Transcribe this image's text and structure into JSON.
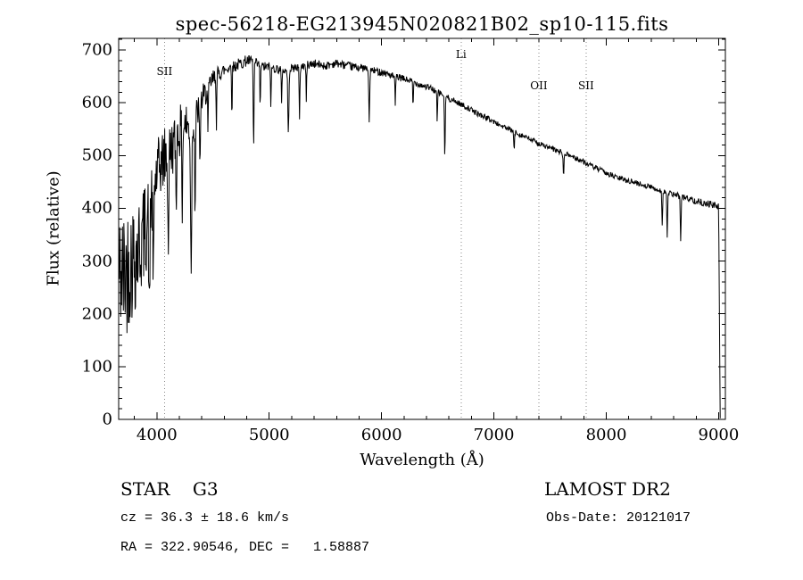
{
  "chart_data": {
    "type": "line",
    "title": "spec-56218-EG213945N020821B02_sp10-115.fits",
    "xlabel": "Wavelength (Å)",
    "ylabel": "Flux (relative)",
    "xlim": [
      3660,
      9060
    ],
    "ylim": [
      0,
      722
    ],
    "xticks": [
      4000,
      5000,
      6000,
      7000,
      8000,
      9000
    ],
    "yticks": [
      0,
      100,
      200,
      300,
      400,
      500,
      600,
      700
    ],
    "x_minor_step": 200,
    "y_minor_step": 20,
    "grid": false,
    "legend": "none",
    "line_color": "#000000",
    "marker_line_color": "#8a8a8a",
    "marker_lines": [
      {
        "label": "SII",
        "wavelength": 4068,
        "label_flux": 660
      },
      {
        "label": "Li",
        "wavelength": 6708,
        "label_flux": 692
      },
      {
        "label": "OII",
        "wavelength": 7400,
        "label_flux": 632
      },
      {
        "label": "SII",
        "wavelength": 7820,
        "label_flux": 632
      }
    ],
    "continuum": [
      [
        3660,
        280
      ],
      [
        3700,
        270
      ],
      [
        3750,
        295
      ],
      [
        3800,
        310
      ],
      [
        3850,
        330
      ],
      [
        3900,
        360
      ],
      [
        3950,
        420
      ],
      [
        4000,
        465
      ],
      [
        4050,
        490
      ],
      [
        4100,
        505
      ],
      [
        4150,
        520
      ],
      [
        4200,
        545
      ],
      [
        4250,
        560
      ],
      [
        4300,
        550
      ],
      [
        4350,
        575
      ],
      [
        4400,
        605
      ],
      [
        4450,
        625
      ],
      [
        4500,
        645
      ],
      [
        4550,
        655
      ],
      [
        4600,
        662
      ],
      [
        4650,
        668
      ],
      [
        4700,
        670
      ],
      [
        4750,
        675
      ],
      [
        4800,
        680
      ],
      [
        4850,
        678
      ],
      [
        4900,
        672
      ],
      [
        4950,
        668
      ],
      [
        5000,
        668
      ],
      [
        5050,
        665
      ],
      [
        5100,
        663
      ],
      [
        5150,
        660
      ],
      [
        5200,
        665
      ],
      [
        5250,
        668
      ],
      [
        5300,
        670
      ],
      [
        5350,
        672
      ],
      [
        5400,
        674
      ],
      [
        5450,
        672
      ],
      [
        5500,
        670
      ],
      [
        5550,
        673
      ],
      [
        5600,
        675
      ],
      [
        5650,
        672
      ],
      [
        5700,
        670
      ],
      [
        5750,
        668
      ],
      [
        5800,
        667
      ],
      [
        5850,
        665
      ],
      [
        5900,
        662
      ],
      [
        5950,
        660
      ],
      [
        6000,
        658
      ],
      [
        6050,
        655
      ],
      [
        6100,
        650
      ],
      [
        6150,
        648
      ],
      [
        6200,
        645
      ],
      [
        6250,
        642
      ],
      [
        6300,
        638
      ],
      [
        6350,
        634
      ],
      [
        6400,
        630
      ],
      [
        6450,
        626
      ],
      [
        6500,
        620
      ],
      [
        6550,
        615
      ],
      [
        6600,
        608
      ],
      [
        6650,
        603
      ],
      [
        6700,
        598
      ],
      [
        6750,
        592
      ],
      [
        6800,
        586
      ],
      [
        6850,
        580
      ],
      [
        6900,
        575
      ],
      [
        6950,
        570
      ],
      [
        7000,
        564
      ],
      [
        7050,
        558
      ],
      [
        7100,
        553
      ],
      [
        7150,
        548
      ],
      [
        7200,
        543
      ],
      [
        7250,
        538
      ],
      [
        7300,
        533
      ],
      [
        7350,
        528
      ],
      [
        7400,
        523
      ],
      [
        7450,
        518
      ],
      [
        7500,
        514
      ],
      [
        7550,
        510
      ],
      [
        7600,
        506
      ],
      [
        7650,
        502
      ],
      [
        7700,
        498
      ],
      [
        7750,
        493
      ],
      [
        7800,
        488
      ],
      [
        7850,
        482
      ],
      [
        7900,
        477
      ],
      [
        7950,
        472
      ],
      [
        8000,
        467
      ],
      [
        8050,
        462
      ],
      [
        8100,
        458
      ],
      [
        8150,
        455
      ],
      [
        8200,
        452
      ],
      [
        8250,
        449
      ],
      [
        8300,
        446
      ],
      [
        8350,
        443
      ],
      [
        8400,
        440
      ],
      [
        8450,
        436
      ],
      [
        8500,
        433
      ],
      [
        8550,
        429
      ],
      [
        8600,
        426
      ],
      [
        8650,
        423
      ],
      [
        8700,
        420
      ],
      [
        8750,
        417
      ],
      [
        8800,
        414
      ],
      [
        8850,
        411
      ],
      [
        8900,
        409
      ],
      [
        8950,
        406
      ],
      [
        9000,
        403
      ],
      [
        9020,
        400
      ]
    ],
    "absorption_lines": [
      [
        3933,
        230,
        6
      ],
      [
        3968,
        200,
        6
      ],
      [
        4101,
        180,
        6
      ],
      [
        4172,
        120,
        5
      ],
      [
        4226,
        150,
        5
      ],
      [
        4305,
        260,
        7
      ],
      [
        4340,
        180,
        5
      ],
      [
        4383,
        130,
        5
      ],
      [
        4455,
        100,
        4
      ],
      [
        4530,
        90,
        4
      ],
      [
        4668,
        90,
        4
      ],
      [
        4861,
        165,
        5
      ],
      [
        4920,
        85,
        4
      ],
      [
        5015,
        80,
        4
      ],
      [
        5110,
        70,
        4
      ],
      [
        5170,
        125,
        6
      ],
      [
        5270,
        100,
        5
      ],
      [
        5330,
        70,
        4
      ],
      [
        5890,
        95,
        6
      ],
      [
        6122,
        60,
        4
      ],
      [
        6280,
        50,
        4
      ],
      [
        6495,
        60,
        4
      ],
      [
        6563,
        120,
        5
      ],
      [
        7180,
        35,
        5
      ],
      [
        7620,
        40,
        6
      ],
      [
        8498,
        65,
        5
      ],
      [
        8542,
        85,
        5
      ],
      [
        8662,
        80,
        5
      ]
    ],
    "noise_amplitude": [
      [
        3660,
        120
      ],
      [
        3700,
        130
      ],
      [
        3760,
        120
      ],
      [
        3820,
        110
      ],
      [
        3880,
        95
      ],
      [
        3940,
        80
      ],
      [
        4000,
        65
      ],
      [
        4100,
        55
      ],
      [
        4200,
        50
      ],
      [
        4300,
        40
      ],
      [
        4400,
        28
      ],
      [
        4500,
        18
      ],
      [
        4600,
        13
      ],
      [
        4800,
        11
      ],
      [
        5000,
        9
      ],
      [
        5500,
        8
      ],
      [
        6000,
        7
      ],
      [
        6500,
        6
      ],
      [
        7000,
        5
      ],
      [
        7600,
        5
      ],
      [
        8200,
        5
      ],
      [
        8700,
        6
      ],
      [
        9000,
        7
      ]
    ],
    "red_cutoff": {
      "start": 9000,
      "end": 9014
    }
  },
  "footer": {
    "class_label": "STAR    G3",
    "cz": "cz = 36.3 ± 18.6 km/s",
    "radec": "RA = 322.90546, DEC =   1.58887",
    "survey": "LAMOST DR2",
    "obs_date": "Obs-Date: 20121017"
  }
}
